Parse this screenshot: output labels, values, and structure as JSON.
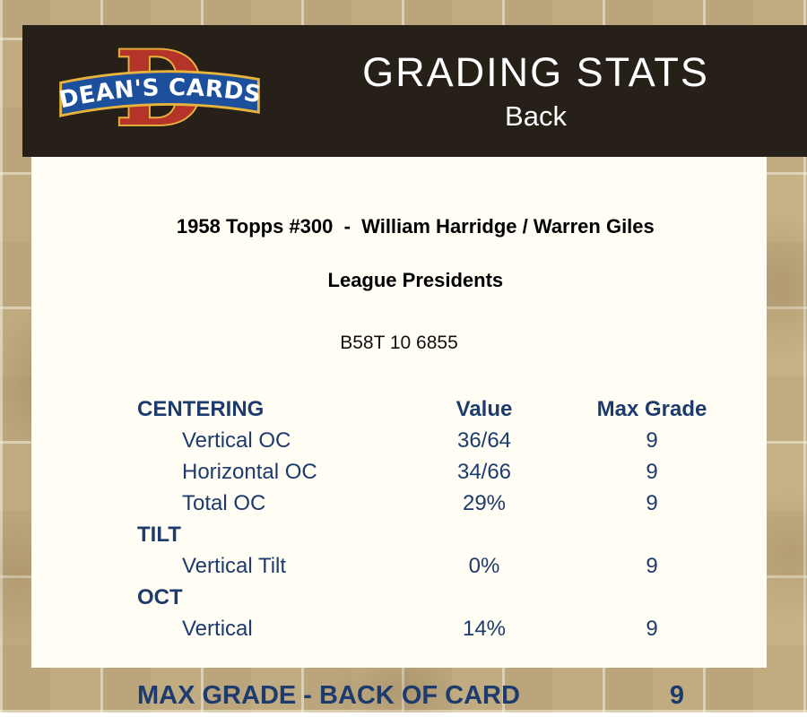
{
  "header": {
    "brand": "DEAN'S CARDS",
    "logo_letter": "D",
    "title": "GRADING STATS",
    "subtitle": "Back"
  },
  "card": {
    "title_line1": "1958 Topps #300  -  William Harridge / Warren Giles",
    "title_line2": "League Presidents",
    "code": "B58T 10 6855"
  },
  "table": {
    "rows": [
      {
        "type": "header",
        "label": "CENTERING",
        "value": "Value",
        "max": "Max Grade"
      },
      {
        "type": "data",
        "label": "Vertical OC",
        "value": "36/64",
        "max": "9"
      },
      {
        "type": "data",
        "label": "Horizontal OC",
        "value": "34/66",
        "max": "9"
      },
      {
        "type": "data",
        "label": "Total OC",
        "value": "29%",
        "max": "9"
      },
      {
        "type": "section",
        "label": "TILT",
        "value": "",
        "max": ""
      },
      {
        "type": "data",
        "label": "Vertical Tilt",
        "value": "0%",
        "max": "9"
      },
      {
        "type": "section",
        "label": "OCT",
        "value": "",
        "max": ""
      },
      {
        "type": "data",
        "label": "Vertical",
        "value": "14%",
        "max": "9"
      }
    ]
  },
  "footer": {
    "label": "MAX GRADE - BACK OF CARD",
    "value": "9"
  },
  "colors": {
    "navy": "#1d3b6d",
    "header_bg": "#272019",
    "page_bg": "#c7b389",
    "panel_bg": "#fffdf4",
    "logo_red": "#b5342a",
    "logo_blue": "#1c4f9c",
    "logo_gold": "#e8b33c"
  }
}
